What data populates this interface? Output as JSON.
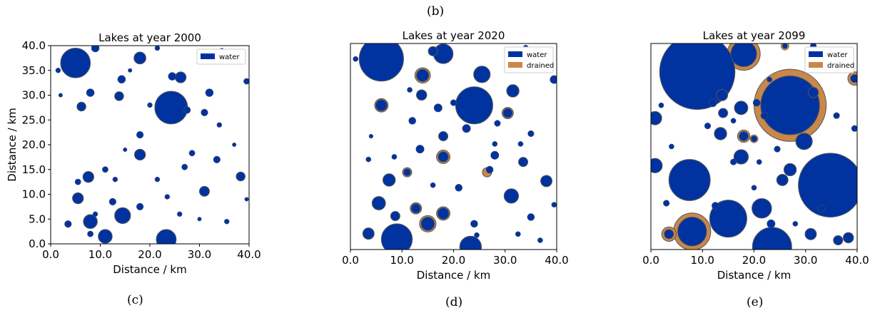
{
  "top_label": "(b)",
  "colors": {
    "water": "#0033a0",
    "drained": "#c8884a",
    "edge": "#555555"
  },
  "chart_data": [
    {
      "type": "scatter",
      "panel_label": "(c)",
      "title": "Lakes at year 2000",
      "xlabel": "Distance / km",
      "ylabel": "Distance / km",
      "xlim": [
        0,
        40
      ],
      "ylim": [
        0,
        40
      ],
      "xticks": [
        "0.0",
        "10.0",
        "20.0",
        "30.0",
        "40.0"
      ],
      "yticks": [
        "0.0",
        "5.0",
        "10.0",
        "15.0",
        "20.0",
        "25.0",
        "30.0",
        "35.0",
        "40.0"
      ],
      "legend": [
        "water"
      ],
      "lakes": [
        {
          "x": 5,
          "y": 36.5,
          "r": 3,
          "s": "water"
        },
        {
          "x": 24.3,
          "y": 27.5,
          "r": 3.3,
          "s": "water"
        },
        {
          "x": 18,
          "y": 37.5,
          "r": 1.2,
          "s": "water"
        },
        {
          "x": 26.2,
          "y": 33.6,
          "r": 1.1,
          "s": "water"
        },
        {
          "x": 24.5,
          "y": 33.8,
          "r": 0.8,
          "s": "water"
        },
        {
          "x": 14.5,
          "y": 5.7,
          "r": 1.6,
          "s": "water"
        },
        {
          "x": 23.3,
          "y": 0.9,
          "r": 2,
          "s": "water"
        },
        {
          "x": 11,
          "y": 1.5,
          "r": 1.4,
          "s": "water"
        },
        {
          "x": 8,
          "y": 4.5,
          "r": 1.4,
          "s": "water"
        },
        {
          "x": 5.5,
          "y": 9.2,
          "r": 1.1,
          "s": "water"
        },
        {
          "x": 7.6,
          "y": 13.5,
          "r": 1.1,
          "s": "water"
        },
        {
          "x": 18,
          "y": 18,
          "r": 1.1,
          "s": "water"
        },
        {
          "x": 31,
          "y": 10.6,
          "r": 1,
          "s": "water"
        },
        {
          "x": 38.3,
          "y": 13.6,
          "r": 0.9,
          "s": "water"
        },
        {
          "x": 13.8,
          "y": 29.8,
          "r": 0.9,
          "s": "water"
        },
        {
          "x": 8,
          "y": 30.5,
          "r": 0.8,
          "s": "water"
        },
        {
          "x": 6.2,
          "y": 27.7,
          "r": 0.9,
          "s": "water"
        },
        {
          "x": 14.3,
          "y": 33.2,
          "r": 0.8,
          "s": "water"
        },
        {
          "x": 32,
          "y": 30.5,
          "r": 0.8,
          "s": "water"
        },
        {
          "x": 18,
          "y": 22,
          "r": 0.7,
          "s": "water"
        },
        {
          "x": 31,
          "y": 26.5,
          "r": 0.7,
          "s": "water"
        },
        {
          "x": 33.5,
          "y": 17,
          "r": 0.7,
          "s": "water"
        },
        {
          "x": 34.5,
          "y": 39,
          "r": 0.5,
          "s": "water"
        },
        {
          "x": 39.5,
          "y": 32.8,
          "r": 0.6,
          "s": "water"
        },
        {
          "x": 1.5,
          "y": 35,
          "r": 0.5,
          "s": "water"
        },
        {
          "x": 5.5,
          "y": 12.5,
          "r": 0.6,
          "s": "water"
        },
        {
          "x": 12.5,
          "y": 8.5,
          "r": 0.7,
          "s": "water"
        },
        {
          "x": 18,
          "y": 7.5,
          "r": 0.7,
          "s": "water"
        },
        {
          "x": 23.5,
          "y": 9.5,
          "r": 0.5,
          "s": "water"
        },
        {
          "x": 26,
          "y": 6,
          "r": 0.5,
          "s": "water"
        },
        {
          "x": 28.5,
          "y": 18.3,
          "r": 0.6,
          "s": "water"
        },
        {
          "x": 27,
          "y": 15.5,
          "r": 0.6,
          "s": "water"
        },
        {
          "x": 11,
          "y": 15,
          "r": 0.6,
          "s": "water"
        },
        {
          "x": 2,
          "y": 30,
          "r": 0.4,
          "s": "water"
        },
        {
          "x": 9,
          "y": 39.5,
          "r": 0.8,
          "s": "water"
        },
        {
          "x": 21.5,
          "y": 39.5,
          "r": 0.5,
          "s": "water"
        },
        {
          "x": 27.5,
          "y": 27,
          "r": 0.7,
          "s": "water"
        },
        {
          "x": 35.5,
          "y": 4.5,
          "r": 0.5,
          "s": "water"
        },
        {
          "x": 39.5,
          "y": 9,
          "r": 0.4,
          "s": "water"
        },
        {
          "x": 16,
          "y": 35,
          "r": 0.4,
          "s": "water"
        },
        {
          "x": 20,
          "y": 28,
          "r": 0.5,
          "s": "water"
        },
        {
          "x": 8,
          "y": 2,
          "r": 0.6,
          "s": "water"
        },
        {
          "x": 3.5,
          "y": 4,
          "r": 0.7,
          "s": "water"
        },
        {
          "x": 13,
          "y": 13,
          "r": 0.5,
          "s": "water"
        },
        {
          "x": 21.5,
          "y": 13,
          "r": 0.5,
          "s": "water"
        },
        {
          "x": 34,
          "y": 24,
          "r": 0.5,
          "s": "water"
        },
        {
          "x": 37,
          "y": 20,
          "r": 0.4,
          "s": "water"
        },
        {
          "x": 30,
          "y": 5,
          "r": 0.4,
          "s": "water"
        },
        {
          "x": 9,
          "y": 6,
          "r": 0.5,
          "s": "water"
        },
        {
          "x": 15,
          "y": 19,
          "r": 0.4,
          "s": "water"
        }
      ]
    },
    {
      "type": "scatter",
      "panel_label": "(d)",
      "title": "Lakes at year 2020",
      "xlabel": "Distance / km",
      "ylabel": "",
      "xlim": [
        0,
        40
      ],
      "ylim": [
        0,
        40
      ],
      "xticks": [
        "0.0",
        "10.0",
        "20.0",
        "30.0",
        "40.0"
      ],
      "yticks": [],
      "legend": [
        "water",
        "drained"
      ],
      "lakes": [
        {
          "x": 6,
          "y": 37,
          "r": 4.3,
          "s": "water"
        },
        {
          "x": 24,
          "y": 28,
          "r": 3.6,
          "s": "water"
        },
        {
          "x": 9,
          "y": 2,
          "r": 3,
          "s": "water"
        },
        {
          "x": 23.3,
          "y": 0.5,
          "r": 2.1,
          "s": "water"
        },
        {
          "x": 18,
          "y": 38,
          "r": 1.9,
          "s": "water"
        },
        {
          "x": 25.5,
          "y": 34,
          "r": 1.6,
          "s": "water"
        },
        {
          "x": 14,
          "y": 33.8,
          "r": 1.2,
          "s": "water"
        },
        {
          "x": 14,
          "y": 33.8,
          "r": 1.5,
          "s": "drained"
        },
        {
          "x": 15,
          "y": 5,
          "r": 1.3,
          "s": "water"
        },
        {
          "x": 15,
          "y": 5,
          "r": 1.6,
          "s": "drained"
        },
        {
          "x": 31.2,
          "y": 10.4,
          "r": 1.4,
          "s": "water"
        },
        {
          "x": 5.5,
          "y": 9,
          "r": 1.3,
          "s": "water"
        },
        {
          "x": 7.5,
          "y": 13.5,
          "r": 1.2,
          "s": "water"
        },
        {
          "x": 18,
          "y": 18,
          "r": 1,
          "s": "water"
        },
        {
          "x": 18,
          "y": 18,
          "r": 1.3,
          "s": "drained"
        },
        {
          "x": 31.5,
          "y": 30.8,
          "r": 1.2,
          "s": "water"
        },
        {
          "x": 3.5,
          "y": 3.1,
          "r": 1.1,
          "s": "water"
        },
        {
          "x": 18,
          "y": 7,
          "r": 1.1,
          "s": "water"
        },
        {
          "x": 18,
          "y": 7,
          "r": 1.3,
          "s": "drained"
        },
        {
          "x": 38,
          "y": 13.3,
          "r": 1.1,
          "s": "water"
        },
        {
          "x": 6,
          "y": 28,
          "r": 1.1,
          "s": "water"
        },
        {
          "x": 6,
          "y": 28,
          "r": 1.3,
          "s": "drained"
        },
        {
          "x": 30.5,
          "y": 26.5,
          "r": 0.9,
          "s": "water"
        },
        {
          "x": 30.5,
          "y": 26.5,
          "r": 1.1,
          "s": "drained"
        },
        {
          "x": 11,
          "y": 15,
          "r": 0.7,
          "s": "water"
        },
        {
          "x": 11,
          "y": 15,
          "r": 0.9,
          "s": "drained"
        },
        {
          "x": 16,
          "y": 38.5,
          "r": 0.9,
          "s": "water"
        },
        {
          "x": 13.8,
          "y": 30,
          "r": 1,
          "s": "water"
        },
        {
          "x": 18,
          "y": 22,
          "r": 0.9,
          "s": "water"
        },
        {
          "x": 33.5,
          "y": 17,
          "r": 0.9,
          "s": "water"
        },
        {
          "x": 28,
          "y": 18.3,
          "r": 0.8,
          "s": "water"
        },
        {
          "x": 27,
          "y": 15.5,
          "r": 0.7,
          "s": "water"
        },
        {
          "x": 26.5,
          "y": 15,
          "r": 0.9,
          "s": "drained"
        },
        {
          "x": 39.5,
          "y": 33,
          "r": 0.8,
          "s": "water"
        },
        {
          "x": 12.7,
          "y": 8,
          "r": 0.9,
          "s": "water"
        },
        {
          "x": 12.7,
          "y": 8,
          "r": 1.1,
          "s": "drained"
        },
        {
          "x": 13.5,
          "y": 19.5,
          "r": 0.8,
          "s": "water"
        },
        {
          "x": 21,
          "y": 12,
          "r": 0.7,
          "s": "water"
        },
        {
          "x": 8.7,
          "y": 6.5,
          "r": 0.9,
          "s": "water"
        },
        {
          "x": 35,
          "y": 6.3,
          "r": 0.7,
          "s": "water"
        },
        {
          "x": 24,
          "y": 5,
          "r": 0.7,
          "s": "water"
        },
        {
          "x": 3.5,
          "y": 17.5,
          "r": 0.5,
          "s": "water"
        },
        {
          "x": 8.5,
          "y": 18,
          "r": 0.5,
          "s": "water"
        },
        {
          "x": 12,
          "y": 25,
          "r": 0.7,
          "s": "water"
        },
        {
          "x": 17,
          "y": 27.5,
          "r": 0.8,
          "s": "water"
        },
        {
          "x": 35,
          "y": 22.5,
          "r": 0.6,
          "s": "water"
        },
        {
          "x": 39.5,
          "y": 8.7,
          "r": 0.5,
          "s": "water"
        },
        {
          "x": 22.5,
          "y": 23.5,
          "r": 0.8,
          "s": "water"
        },
        {
          "x": 28.5,
          "y": 24.5,
          "r": 0.6,
          "s": "water"
        },
        {
          "x": 20,
          "y": 28.5,
          "r": 0.6,
          "s": "water"
        },
        {
          "x": 34,
          "y": 39.2,
          "r": 0.5,
          "s": "water"
        },
        {
          "x": 24.5,
          "y": 2.8,
          "r": 0.5,
          "s": "water"
        },
        {
          "x": 32.5,
          "y": 3,
          "r": 0.5,
          "s": "water"
        },
        {
          "x": 11.5,
          "y": 31,
          "r": 0.5,
          "s": "water"
        },
        {
          "x": 36.8,
          "y": 1.8,
          "r": 0.5,
          "s": "water"
        },
        {
          "x": 16,
          "y": 12.5,
          "r": 0.5,
          "s": "water"
        },
        {
          "x": 33,
          "y": 20.5,
          "r": 0.5,
          "s": "water"
        },
        {
          "x": 28,
          "y": 20.5,
          "r": 0.5,
          "s": "water"
        },
        {
          "x": 1,
          "y": 37,
          "r": 0.5,
          "s": "water"
        },
        {
          "x": 4,
          "y": 22,
          "r": 0.4,
          "s": "water"
        }
      ]
    },
    {
      "type": "scatter",
      "panel_label": "(e)",
      "title": "Lakes at year 2099",
      "xlabel": "Distance / km",
      "ylabel": "",
      "xlim": [
        0,
        40
      ],
      "ylim": [
        0,
        40
      ],
      "xticks": [
        "0.0",
        "10.0",
        "20.0",
        "30.0",
        "40.0"
      ],
      "yticks": [],
      "legend": [
        "water",
        "drained"
      ],
      "lakes": [
        {
          "x": 9,
          "y": 34.5,
          "r": 7.3,
          "s": "water"
        },
        {
          "x": 27,
          "y": 28,
          "r": 7,
          "s": "drained"
        },
        {
          "x": 27,
          "y": 28,
          "r": 5.7,
          "s": "water"
        },
        {
          "x": 34.8,
          "y": 12.5,
          "r": 6.2,
          "s": "water"
        },
        {
          "x": 7.5,
          "y": 13.5,
          "r": 4,
          "s": "water"
        },
        {
          "x": 15,
          "y": 6,
          "r": 3.6,
          "s": "water"
        },
        {
          "x": 23.5,
          "y": 0.5,
          "r": 3.8,
          "s": "water"
        },
        {
          "x": 8,
          "y": 3.5,
          "r": 3.6,
          "s": "drained"
        },
        {
          "x": 8,
          "y": 3.5,
          "r": 2.8,
          "s": "water"
        },
        {
          "x": 18,
          "y": 38,
          "r": 3.2,
          "s": "drained"
        },
        {
          "x": 18,
          "y": 38,
          "r": 2.5,
          "s": "water"
        },
        {
          "x": 21.5,
          "y": 8,
          "r": 1.9,
          "s": "water"
        },
        {
          "x": 29.7,
          "y": 21,
          "r": 1.6,
          "s": "water"
        },
        {
          "x": 17.5,
          "y": 18,
          "r": 1.4,
          "s": "water"
        },
        {
          "x": 17.5,
          "y": 27.5,
          "r": 1.3,
          "s": "water"
        },
        {
          "x": 0.8,
          "y": 25.5,
          "r": 1.3,
          "s": "water"
        },
        {
          "x": 0.8,
          "y": 16.3,
          "r": 1.4,
          "s": "water"
        },
        {
          "x": 39.5,
          "y": 33.2,
          "r": 1.3,
          "s": "drained"
        },
        {
          "x": 39.5,
          "y": 33.2,
          "r": 0.8,
          "s": "water"
        },
        {
          "x": 3.5,
          "y": 3,
          "r": 1.4,
          "s": "drained"
        },
        {
          "x": 3.5,
          "y": 3,
          "r": 0.9,
          "s": "water"
        },
        {
          "x": 27,
          "y": 15.5,
          "r": 1.2,
          "s": "water"
        },
        {
          "x": 25.5,
          "y": 13.5,
          "r": 1.1,
          "s": "water"
        },
        {
          "x": 13.8,
          "y": 30,
          "r": 1.1,
          "s": "water"
        },
        {
          "x": 13.5,
          "y": 22.5,
          "r": 1.2,
          "s": "water"
        },
        {
          "x": 18,
          "y": 22,
          "r": 1.2,
          "s": "drained"
        },
        {
          "x": 18,
          "y": 22,
          "r": 0.9,
          "s": "water"
        },
        {
          "x": 31,
          "y": 3,
          "r": 1.1,
          "s": "water"
        },
        {
          "x": 38.3,
          "y": 2.3,
          "r": 1,
          "s": "water"
        },
        {
          "x": 36.3,
          "y": 1.8,
          "r": 0.9,
          "s": "water"
        },
        {
          "x": 31.5,
          "y": 30.5,
          "r": 1,
          "s": "water"
        },
        {
          "x": 23.3,
          "y": 5,
          "r": 0.8,
          "s": "water"
        },
        {
          "x": 12,
          "y": 28.5,
          "r": 0.8,
          "s": "water"
        },
        {
          "x": 20,
          "y": 21.5,
          "r": 0.8,
          "s": "drained"
        },
        {
          "x": 20,
          "y": 21.5,
          "r": 0.6,
          "s": "water"
        },
        {
          "x": 14,
          "y": 26.5,
          "r": 0.9,
          "s": "water"
        },
        {
          "x": 22,
          "y": 26,
          "r": 0.7,
          "s": "water"
        },
        {
          "x": 26,
          "y": 39.5,
          "r": 0.8,
          "s": "drained"
        },
        {
          "x": 26,
          "y": 39.5,
          "r": 0.5,
          "s": "water"
        },
        {
          "x": 31.5,
          "y": 39.5,
          "r": 0.6,
          "s": "water"
        },
        {
          "x": 12.5,
          "y": 8.5,
          "r": 0.7,
          "s": "water"
        },
        {
          "x": 33,
          "y": 8,
          "r": 0.7,
          "s": "water"
        },
        {
          "x": 16,
          "y": 17,
          "r": 0.6,
          "s": "water"
        },
        {
          "x": 3,
          "y": 9,
          "r": 0.6,
          "s": "water"
        },
        {
          "x": 39.5,
          "y": 23.5,
          "r": 0.6,
          "s": "water"
        },
        {
          "x": 11,
          "y": 24,
          "r": 0.6,
          "s": "water"
        },
        {
          "x": 20.5,
          "y": 28.5,
          "r": 0.7,
          "s": "water"
        },
        {
          "x": 16,
          "y": 25,
          "r": 0.5,
          "s": "water"
        },
        {
          "x": 21,
          "y": 17,
          "r": 0.5,
          "s": "water"
        },
        {
          "x": 28,
          "y": 5,
          "r": 0.5,
          "s": "water"
        },
        {
          "x": 4,
          "y": 20,
          "r": 0.5,
          "s": "water"
        },
        {
          "x": 2,
          "y": 28,
          "r": 0.5,
          "s": "water"
        },
        {
          "x": 23,
          "y": 33,
          "r": 0.5,
          "s": "water"
        },
        {
          "x": 36,
          "y": 26,
          "r": 0.6,
          "s": "water"
        },
        {
          "x": 20,
          "y": 12,
          "r": 0.5,
          "s": "water"
        },
        {
          "x": 24.5,
          "y": 19.5,
          "r": 0.6,
          "s": "water"
        }
      ]
    }
  ]
}
